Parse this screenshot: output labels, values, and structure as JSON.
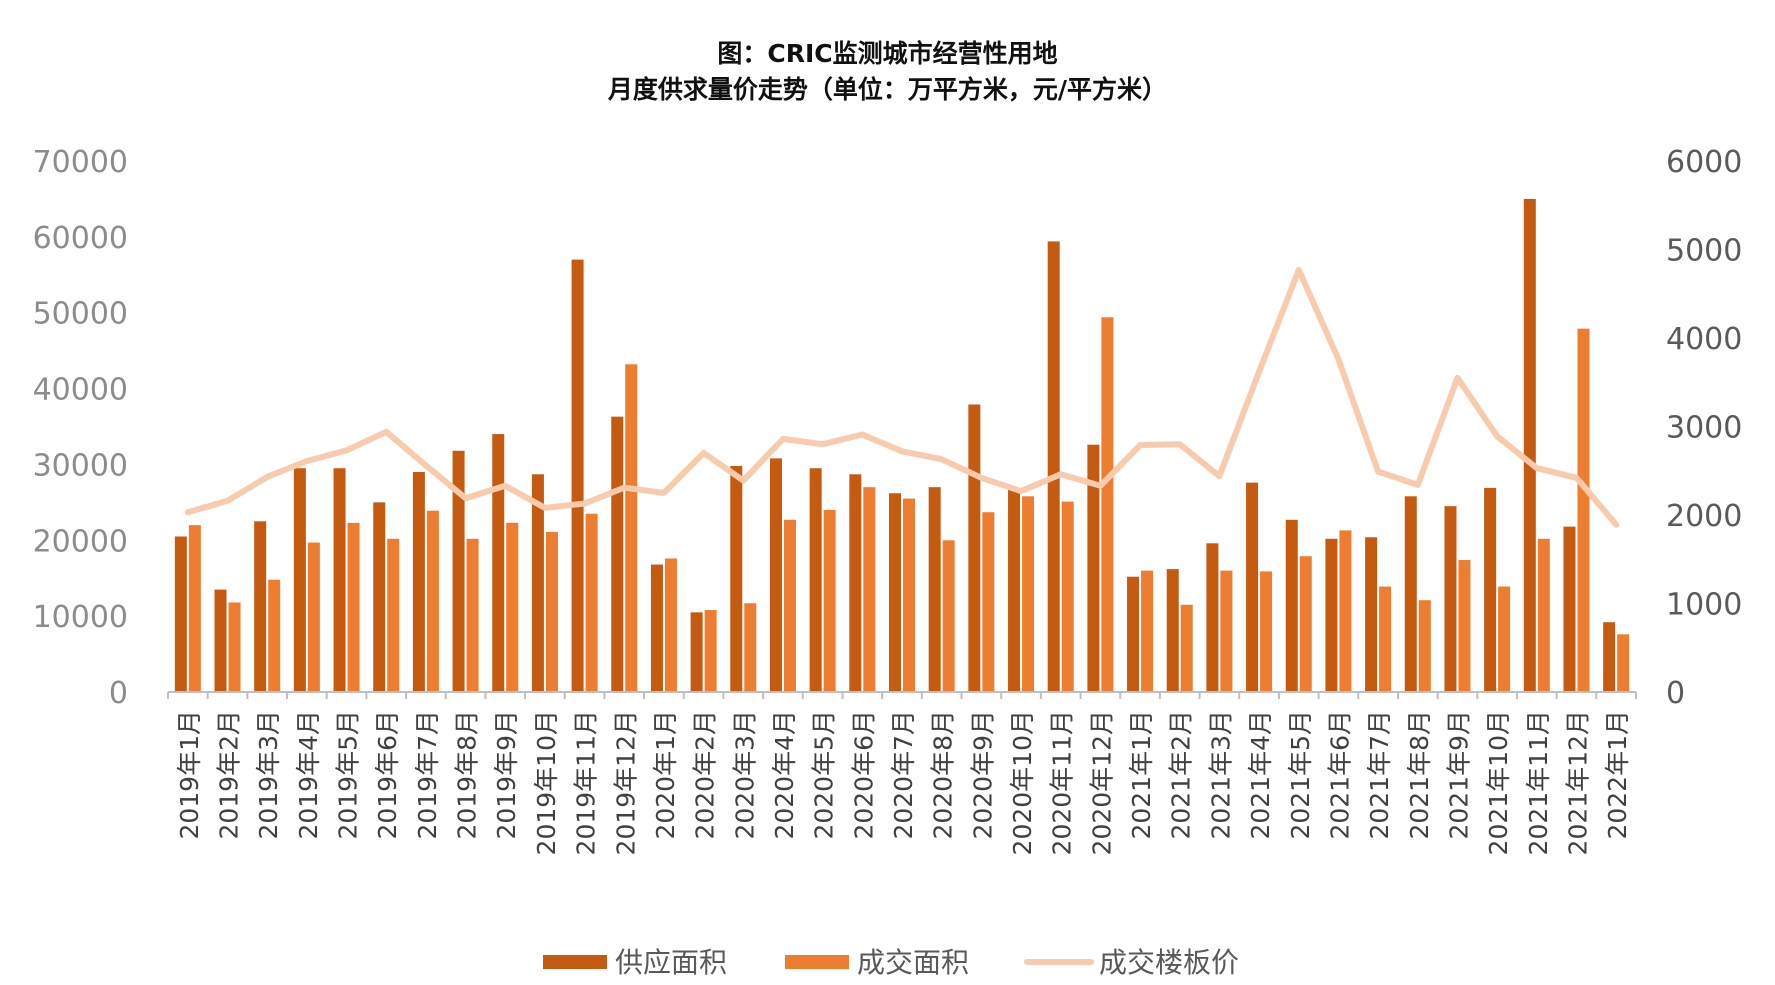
{
  "chart_data": {
    "type": "bar",
    "title": "图：CRIC监测城市经营性用地",
    "subtitle": "月度供求量价走势（单位：万平方米，元/平方米）",
    "categories": [
      "2019年1月",
      "2019年2月",
      "2019年3月",
      "2019年4月",
      "2019年5月",
      "2019年6月",
      "2019年7月",
      "2019年8月",
      "2019年9月",
      "2019年10月",
      "2019年11月",
      "2019年12月",
      "2020年1月",
      "2020年2月",
      "2020年3月",
      "2020年4月",
      "2020年5月",
      "2020年6月",
      "2020年7月",
      "2020年8月",
      "2020年9月",
      "2020年10月",
      "2020年11月",
      "2020年12月",
      "2021年1月",
      "2021年2月",
      "2021年3月",
      "2021年4月",
      "2021年5月",
      "2021年6月",
      "2021年7月",
      "2021年8月",
      "2021年9月",
      "2021年10月",
      "2021年11月",
      "2021年12月",
      "2022年1月"
    ],
    "series": [
      {
        "name": "供应面积",
        "type": "bar",
        "axis": "left",
        "color": "#c55a11",
        "values": [
          20500,
          13500,
          22500,
          29500,
          29500,
          25000,
          29000,
          31800,
          34000,
          28700,
          57000,
          36300,
          16800,
          10500,
          29800,
          30800,
          29500,
          28700,
          26200,
          27000,
          37900,
          26800,
          59400,
          32600,
          15200,
          16200,
          19600,
          27600,
          22700,
          20200,
          20400,
          25800,
          24500,
          26900,
          65000,
          21800,
          9200
        ]
      },
      {
        "name": "成交面积",
        "type": "bar",
        "axis": "right-scaled",
        "color": "#ed7d31",
        "values": [
          22000,
          11800,
          14800,
          19700,
          22300,
          20200,
          23900,
          20200,
          22300,
          21100,
          23500,
          43200,
          17600,
          10800,
          11700,
          22700,
          24000,
          27000,
          25500,
          20000,
          23700,
          25800,
          25100,
          49400,
          16000,
          11500,
          16000,
          15900,
          17900,
          21300,
          13900,
          12100,
          17400,
          13900,
          20200,
          47900,
          7600
        ]
      },
      {
        "name": "成交楼板价",
        "type": "line",
        "axis": "right",
        "color": "#f8cbad",
        "values": [
          2030,
          2160,
          2430,
          2610,
          2730,
          2940,
          2560,
          2190,
          2330,
          2080,
          2130,
          2310,
          2250,
          2700,
          2390,
          2860,
          2800,
          2910,
          2720,
          2630,
          2420,
          2270,
          2460,
          2330,
          2790,
          2800,
          2440,
          3620,
          4770,
          3760,
          2490,
          2340,
          3550,
          2890,
          2530,
          2420,
          1890
        ]
      }
    ],
    "y_left": {
      "min": 0,
      "max": 70000,
      "ticks": [
        0,
        10000,
        20000,
        30000,
        40000,
        50000,
        60000,
        70000
      ]
    },
    "y_right": {
      "min": 0,
      "max": 6000,
      "ticks": [
        0,
        1000,
        2000,
        3000,
        4000,
        5000,
        6000
      ]
    },
    "legend": {
      "placement": "bottom",
      "items": [
        "供应面积",
        "成交面积",
        "成交楼板价"
      ]
    },
    "grid": false
  }
}
